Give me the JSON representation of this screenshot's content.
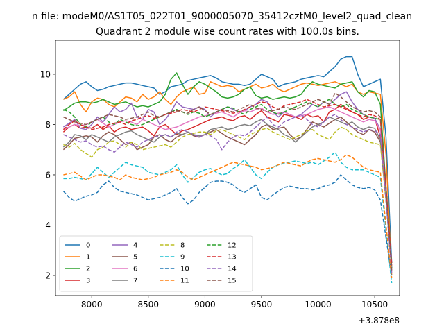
{
  "figure": {
    "suptitle": "n file: modeM0/AS1T05_022T01_9000005070_35412cztM0_level2_quad_clean",
    "title": "Quadrant 2 module wise count rates with 100.0s bins."
  },
  "chart_data": {
    "type": "line",
    "title": "Quadrant 2 module wise count rates with 100.0s bins.",
    "xlabel": "",
    "ylabel": "",
    "x_offset_label": "+3.878e8",
    "xlim": [
      7680,
      10720
    ],
    "ylim": [
      1.2,
      11.35
    ],
    "xticks": [
      8000,
      8500,
      9000,
      9500,
      10000,
      10500
    ],
    "yticks": [
      2,
      4,
      6,
      8,
      10
    ],
    "grid": false,
    "legend": {
      "placement": "lower-left",
      "columns": 4
    },
    "x": [
      7750,
      7800,
      7850,
      7900,
      7950,
      8000,
      8050,
      8100,
      8150,
      8200,
      8250,
      8300,
      8350,
      8400,
      8450,
      8500,
      8550,
      8600,
      8650,
      8700,
      8750,
      8800,
      8850,
      8900,
      8950,
      9000,
      9050,
      9100,
      9150,
      9200,
      9250,
      9300,
      9350,
      9400,
      9450,
      9500,
      9550,
      9600,
      9650,
      9700,
      9750,
      9800,
      9850,
      9900,
      9950,
      10000,
      10050,
      10100,
      10150,
      10200,
      10250,
      10300,
      10350,
      10400,
      10450,
      10500,
      10550,
      10600,
      10650
    ],
    "series": [
      {
        "name": "0",
        "color": "#1f77b4",
        "dash": "solid",
        "values": [
          9.0,
          9.2,
          9.4,
          9.6,
          9.7,
          9.5,
          9.35,
          9.4,
          9.5,
          9.55,
          9.6,
          9.65,
          9.65,
          9.6,
          9.55,
          9.5,
          9.45,
          9.2,
          9.3,
          9.5,
          9.55,
          9.6,
          9.75,
          9.8,
          9.85,
          9.9,
          9.95,
          9.85,
          9.7,
          9.65,
          9.6,
          9.6,
          9.55,
          9.6,
          9.8,
          10.0,
          9.9,
          9.8,
          9.5,
          9.6,
          9.65,
          9.7,
          9.8,
          9.85,
          9.9,
          9.95,
          9.9,
          10.1,
          10.3,
          10.6,
          10.7,
          10.7,
          10.0,
          9.5,
          9.6,
          9.7,
          9.8,
          7.5,
          2.5
        ]
      },
      {
        "name": "1",
        "color": "#ff7f0e",
        "dash": "solid",
        "values": [
          9.0,
          9.1,
          9.3,
          8.8,
          8.5,
          8.9,
          9.05,
          9.0,
          8.8,
          8.7,
          8.9,
          9.1,
          9.05,
          8.9,
          9.2,
          9.0,
          9.1,
          9.3,
          9.0,
          8.8,
          9.1,
          9.3,
          9.4,
          9.5,
          9.2,
          9.25,
          9.7,
          9.6,
          9.5,
          9.55,
          9.5,
          9.3,
          9.4,
          9.5,
          9.6,
          9.45,
          9.5,
          9.6,
          9.4,
          9.3,
          9.4,
          9.5,
          9.6,
          9.65,
          9.6,
          9.55,
          9.6,
          9.65,
          9.7,
          9.6,
          9.5,
          9.6,
          9.3,
          9.2,
          9.3,
          9.25,
          9.2,
          6.8,
          2.0
        ]
      },
      {
        "name": "2",
        "color": "#2ca02c",
        "dash": "solid",
        "values": [
          8.55,
          8.7,
          8.85,
          8.9,
          8.9,
          8.85,
          8.9,
          9.0,
          8.9,
          8.8,
          8.85,
          8.9,
          8.8,
          8.7,
          8.75,
          8.7,
          8.8,
          8.9,
          9.2,
          9.8,
          10.05,
          9.6,
          9.2,
          9.5,
          9.7,
          9.6,
          9.45,
          9.3,
          9.1,
          9.05,
          9.1,
          9.2,
          9.4,
          9.5,
          9.15,
          9.05,
          9.1,
          9.0,
          9.05,
          9.1,
          9.05,
          9.1,
          9.2,
          9.5,
          9.7,
          9.6,
          9.55,
          9.5,
          9.45,
          9.6,
          9.65,
          9.7,
          9.3,
          9.1,
          9.35,
          9.3,
          8.8,
          5.5,
          2.3
        ]
      },
      {
        "name": "3",
        "color": "#d62728",
        "dash": "solid",
        "values": [
          7.7,
          7.9,
          8.0,
          7.85,
          7.9,
          7.85,
          8.0,
          7.8,
          7.95,
          7.7,
          7.85,
          7.9,
          7.8,
          7.85,
          7.9,
          7.75,
          7.55,
          7.9,
          8.0,
          7.8,
          7.6,
          7.75,
          7.8,
          7.9,
          8.0,
          8.1,
          8.2,
          8.25,
          8.3,
          8.2,
          8.15,
          8.3,
          8.35,
          8.2,
          8.4,
          8.55,
          8.3,
          8.2,
          8.1,
          8.4,
          8.35,
          8.3,
          8.2,
          8.4,
          8.3,
          8.35,
          8.1,
          8.5,
          8.6,
          8.8,
          8.65,
          8.5,
          8.4,
          8.2,
          8.3,
          8.25,
          7.5,
          5.0,
          2.5
        ]
      },
      {
        "name": "4",
        "color": "#9467bd",
        "dash": "solid",
        "values": [
          7.9,
          8.05,
          8.2,
          7.85,
          7.8,
          8.0,
          8.3,
          8.1,
          8.4,
          8.7,
          8.5,
          8.6,
          8.85,
          8.3,
          8.2,
          8.6,
          8.5,
          8.0,
          8.2,
          8.5,
          8.9,
          8.7,
          8.65,
          8.6,
          8.7,
          8.6,
          8.3,
          8.5,
          8.6,
          8.7,
          8.6,
          8.5,
          8.55,
          8.7,
          8.8,
          9.0,
          8.9,
          8.5,
          8.3,
          8.5,
          8.4,
          8.3,
          8.4,
          8.6,
          8.8,
          8.7,
          8.9,
          8.8,
          9.0,
          9.2,
          9.3,
          8.9,
          8.6,
          8.4,
          8.3,
          8.25,
          7.8,
          5.2,
          2.2
        ]
      },
      {
        "name": "5",
        "color": "#8c564b",
        "dash": "solid",
        "values": [
          7.0,
          7.2,
          7.45,
          7.5,
          7.55,
          7.5,
          7.3,
          7.55,
          7.7,
          7.6,
          7.4,
          7.2,
          7.3,
          7.0,
          7.1,
          7.2,
          7.5,
          7.6,
          7.4,
          7.3,
          7.5,
          7.6,
          7.7,
          7.55,
          7.5,
          7.6,
          7.7,
          7.8,
          7.65,
          7.5,
          7.4,
          7.3,
          7.2,
          7.4,
          7.6,
          7.9,
          8.0,
          7.8,
          7.85,
          7.9,
          7.6,
          7.4,
          7.5,
          7.8,
          8.1,
          8.0,
          7.9,
          8.05,
          8.2,
          8.3,
          8.1,
          7.9,
          7.7,
          7.6,
          7.8,
          7.7,
          7.3,
          5.0,
          2.5
        ]
      },
      {
        "name": "6",
        "color": "#e377c2",
        "dash": "solid",
        "values": [
          7.8,
          7.9,
          8.0,
          7.95,
          8.0,
          8.1,
          8.2,
          8.05,
          7.9,
          8.0,
          8.1,
          8.15,
          8.1,
          8.0,
          8.2,
          8.1,
          8.0,
          7.9,
          7.8,
          7.85,
          7.9,
          8.0,
          8.1,
          8.2,
          8.3,
          8.35,
          8.4,
          8.45,
          8.5,
          8.4,
          8.3,
          8.45,
          8.55,
          8.5,
          8.6,
          8.65,
          8.5,
          8.4,
          8.45,
          8.5,
          8.4,
          8.3,
          8.35,
          8.4,
          8.5,
          8.6,
          8.65,
          8.7,
          8.6,
          8.5,
          8.4,
          8.3,
          8.2,
          8.1,
          8.2,
          8.15,
          7.8,
          5.1,
          2.4
        ]
      },
      {
        "name": "7",
        "color": "#7f7f7f",
        "dash": "solid",
        "values": [
          7.1,
          7.3,
          7.6,
          7.55,
          7.4,
          7.6,
          7.5,
          7.4,
          7.3,
          7.5,
          7.6,
          7.7,
          7.75,
          7.6,
          7.5,
          7.4,
          7.3,
          7.5,
          7.6,
          7.5,
          7.65,
          7.6,
          7.7,
          7.6,
          7.55,
          7.6,
          7.8,
          7.85,
          7.9,
          7.8,
          7.85,
          7.95,
          8.0,
          7.95,
          8.1,
          8.2,
          8.0,
          7.9,
          7.8,
          7.6,
          7.5,
          7.3,
          7.5,
          7.7,
          7.9,
          8.0,
          8.1,
          8.3,
          8.2,
          8.1,
          8.0,
          8.1,
          7.9,
          7.8,
          7.9,
          7.85,
          7.4,
          5.0,
          2.3
        ]
      },
      {
        "name": "8",
        "color": "#bcbd22",
        "dash": "dashed",
        "values": [
          7.2,
          7.1,
          7.25,
          7.0,
          6.85,
          6.7,
          7.0,
          7.1,
          7.3,
          7.35,
          7.2,
          7.1,
          7.3,
          7.2,
          7.0,
          7.05,
          7.1,
          7.15,
          7.2,
          7.1,
          7.3,
          7.5,
          7.6,
          7.65,
          7.7,
          7.7,
          7.6,
          7.75,
          7.8,
          7.7,
          7.6,
          7.5,
          7.4,
          7.6,
          7.7,
          7.8,
          7.85,
          7.7,
          7.6,
          7.5,
          7.4,
          7.5,
          7.6,
          7.75,
          7.8,
          7.6,
          7.5,
          7.4,
          7.7,
          7.9,
          7.8,
          7.6,
          7.5,
          7.4,
          7.3,
          7.25,
          7.2,
          5.0,
          2.2
        ]
      },
      {
        "name": "9",
        "color": "#17becf",
        "dash": "dashed",
        "values": [
          5.85,
          5.85,
          5.9,
          5.85,
          5.8,
          6.05,
          6.3,
          6.1,
          5.9,
          6.1,
          6.3,
          6.5,
          6.4,
          6.35,
          6.3,
          6.1,
          6.05,
          6.0,
          6.1,
          6.2,
          6.4,
          6.0,
          5.7,
          5.9,
          6.1,
          6.2,
          6.25,
          6.1,
          6.0,
          6.05,
          6.25,
          6.4,
          6.6,
          6.3,
          6.0,
          5.85,
          6.1,
          6.3,
          6.4,
          6.45,
          6.5,
          6.55,
          6.5,
          6.45,
          6.5,
          6.4,
          6.55,
          6.7,
          6.9,
          6.5,
          6.3,
          6.2,
          6.2,
          6.2,
          6.1,
          6.0,
          5.9,
          3.8,
          1.7
        ]
      },
      {
        "name": "10",
        "color": "#1f77b4",
        "dash": "dashed",
        "values": [
          5.35,
          5.1,
          4.95,
          5.05,
          5.15,
          5.2,
          5.3,
          5.6,
          5.75,
          5.5,
          5.35,
          5.3,
          5.25,
          5.2,
          5.1,
          5.0,
          5.05,
          5.1,
          5.2,
          5.3,
          5.45,
          5.1,
          4.85,
          5.0,
          5.3,
          5.5,
          5.7,
          5.75,
          5.75,
          5.7,
          5.6,
          5.4,
          5.3,
          5.45,
          5.6,
          5.1,
          5.0,
          5.2,
          5.35,
          5.5,
          5.55,
          5.5,
          5.45,
          5.45,
          5.4,
          5.45,
          5.55,
          5.6,
          5.7,
          6.0,
          5.8,
          5.6,
          5.5,
          5.45,
          5.5,
          5.4,
          5.0,
          3.5,
          2.0
        ]
      },
      {
        "name": "11",
        "color": "#ff7f0e",
        "dash": "dashed",
        "values": [
          6.0,
          6.05,
          6.1,
          5.95,
          5.8,
          5.9,
          6.0,
          6.0,
          5.95,
          5.9,
          5.8,
          6.0,
          5.9,
          5.85,
          5.8,
          5.85,
          5.9,
          6.0,
          6.05,
          6.1,
          6.2,
          6.1,
          5.9,
          5.8,
          5.9,
          6.0,
          6.1,
          6.2,
          6.3,
          6.4,
          6.5,
          6.45,
          6.4,
          6.35,
          6.3,
          6.2,
          6.25,
          6.3,
          6.4,
          6.5,
          6.45,
          6.4,
          6.35,
          6.5,
          6.6,
          6.65,
          6.6,
          6.55,
          6.5,
          6.6,
          6.8,
          6.7,
          6.5,
          6.3,
          6.2,
          6.15,
          6.1,
          4.0,
          1.9
        ]
      },
      {
        "name": "12",
        "color": "#2ca02c",
        "dash": "dashed",
        "values": [
          8.6,
          8.5,
          8.3,
          8.0,
          7.9,
          8.1,
          8.2,
          8.3,
          8.1,
          8.0,
          8.2,
          8.1,
          8.0,
          7.95,
          8.0,
          8.1,
          8.2,
          8.3,
          8.4,
          8.5,
          8.6,
          8.5,
          8.4,
          8.5,
          8.45,
          8.3,
          8.4,
          8.5,
          8.6,
          8.7,
          8.65,
          8.5,
          8.4,
          8.6,
          8.7,
          8.8,
          8.6,
          8.5,
          8.4,
          8.5,
          8.6,
          8.7,
          8.8,
          8.9,
          8.8,
          8.7,
          8.9,
          9.0,
          8.8,
          8.7,
          8.8,
          8.6,
          8.5,
          8.4,
          8.3,
          8.25,
          8.2,
          5.5,
          2.3
        ]
      },
      {
        "name": "13",
        "color": "#d62728",
        "dash": "dashed",
        "values": [
          7.8,
          8.0,
          8.15,
          8.0,
          7.9,
          7.8,
          7.85,
          7.9,
          8.0,
          8.05,
          8.1,
          8.0,
          8.15,
          8.2,
          8.3,
          8.35,
          8.25,
          8.3,
          8.4,
          8.45,
          8.5,
          8.6,
          8.55,
          8.5,
          8.6,
          8.7,
          8.65,
          8.6,
          8.55,
          8.5,
          8.45,
          8.5,
          8.6,
          8.7,
          8.8,
          8.9,
          8.85,
          8.7,
          8.6,
          8.75,
          8.8,
          8.85,
          8.9,
          9.0,
          8.9,
          8.8,
          8.7,
          8.75,
          8.8,
          8.7,
          8.6,
          8.5,
          8.4,
          8.3,
          8.4,
          8.35,
          8.2,
          5.5,
          2.4
        ]
      },
      {
        "name": "14",
        "color": "#9467bd",
        "dash": "dashed",
        "values": [
          7.6,
          7.5,
          7.4,
          7.3,
          7.35,
          7.2,
          7.1,
          7.15,
          7.0,
          6.9,
          7.1,
          7.3,
          7.2,
          7.1,
          7.3,
          7.4,
          7.5,
          7.55,
          7.6,
          7.5,
          7.7,
          7.8,
          7.7,
          7.6,
          7.5,
          7.6,
          7.55,
          7.4,
          7.0,
          7.3,
          7.5,
          7.6,
          7.55,
          7.7,
          7.9,
          8.1,
          8.3,
          8.0,
          7.9,
          8.1,
          8.2,
          8.3,
          8.4,
          8.2,
          8.0,
          7.9,
          8.1,
          8.3,
          8.4,
          8.2,
          8.0,
          7.9,
          7.8,
          7.7,
          7.8,
          7.75,
          7.6,
          5.0,
          2.1
        ]
      },
      {
        "name": "15",
        "color": "#8c564b",
        "dash": "dashed",
        "values": [
          8.3,
          8.2,
          8.1,
          8.05,
          8.0,
          8.1,
          8.2,
          8.3,
          8.4,
          8.35,
          8.3,
          8.2,
          8.25,
          8.3,
          8.4,
          8.5,
          8.35,
          8.3,
          8.4,
          8.5,
          8.55,
          8.5,
          8.45,
          8.6,
          8.7,
          8.55,
          8.4,
          8.5,
          8.6,
          8.55,
          8.5,
          8.6,
          8.7,
          8.8,
          8.65,
          8.6,
          8.5,
          8.55,
          8.6,
          8.7,
          8.65,
          8.6,
          8.7,
          8.8,
          8.9,
          9.0,
          8.9,
          8.8,
          9.25,
          9.1,
          8.9,
          8.7,
          8.6,
          8.5,
          8.55,
          8.5,
          8.3,
          5.5,
          2.2
        ]
      }
    ]
  }
}
